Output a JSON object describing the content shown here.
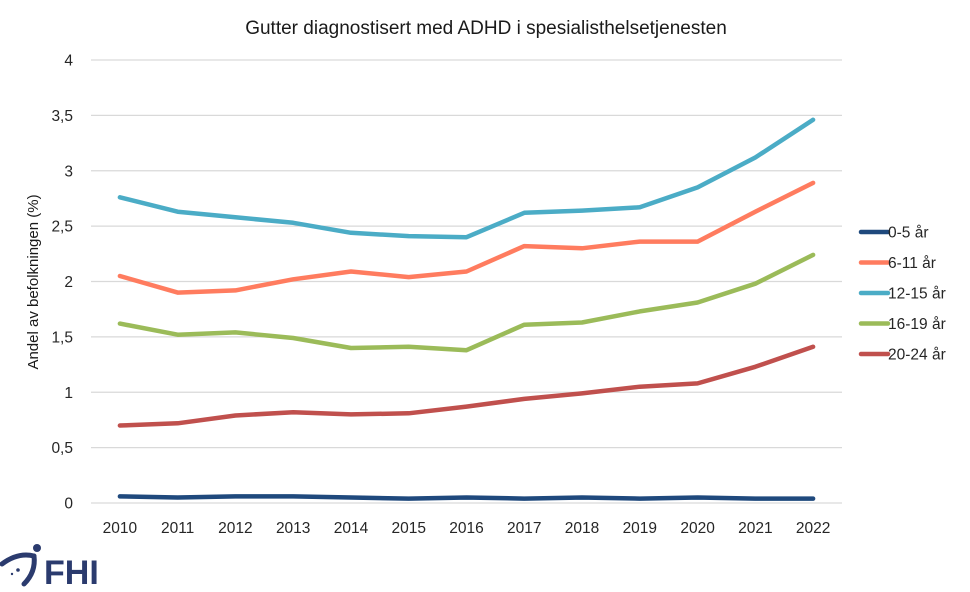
{
  "chart_data": {
    "type": "line",
    "title": "Gutter diagnostisert med ADHD i spesialisthelsetjenesten",
    "xlabel": "",
    "ylabel": "Andel av befolkningen (%)",
    "ylim": [
      0,
      4
    ],
    "yticks": [
      0,
      0.5,
      1,
      1.5,
      2,
      2.5,
      3,
      3.5,
      4
    ],
    "ytick_labels": [
      "0",
      "0,5",
      "1",
      "1,5",
      "2",
      "2,5",
      "3",
      "3,5",
      "4"
    ],
    "grid": true,
    "legend_position": "right",
    "categories": [
      "2010",
      "2011",
      "2012",
      "2013",
      "2014",
      "2015",
      "2016",
      "2017",
      "2018",
      "2019",
      "2020",
      "2021",
      "2022"
    ],
    "series": [
      {
        "name": "0-5 år",
        "color": "#1f497d",
        "values": [
          0.06,
          0.05,
          0.06,
          0.06,
          0.05,
          0.04,
          0.05,
          0.04,
          0.05,
          0.04,
          0.05,
          0.04,
          0.04
        ]
      },
      {
        "name": "6-11 år",
        "color": "#ff7c5f",
        "values": [
          2.05,
          1.9,
          1.92,
          2.02,
          2.09,
          2.04,
          2.09,
          2.32,
          2.3,
          2.36,
          2.36,
          2.63,
          2.89
        ]
      },
      {
        "name": "12-15 år",
        "color": "#4bacc6",
        "values": [
          2.76,
          2.63,
          2.58,
          2.53,
          2.44,
          2.41,
          2.4,
          2.62,
          2.64,
          2.67,
          2.85,
          3.12,
          3.46
        ]
      },
      {
        "name": "16-19 år",
        "color": "#9bbb59",
        "values": [
          1.62,
          1.52,
          1.54,
          1.49,
          1.4,
          1.41,
          1.38,
          1.61,
          1.63,
          1.73,
          1.81,
          1.98,
          2.24
        ]
      },
      {
        "name": "20-24 år",
        "color": "#c0504d",
        "values": [
          0.7,
          0.72,
          0.79,
          0.82,
          0.8,
          0.81,
          0.87,
          0.94,
          0.99,
          1.05,
          1.08,
          1.23,
          1.41
        ]
      }
    ]
  },
  "logo": {
    "text": "FHI",
    "color": "#2b3b6e"
  }
}
